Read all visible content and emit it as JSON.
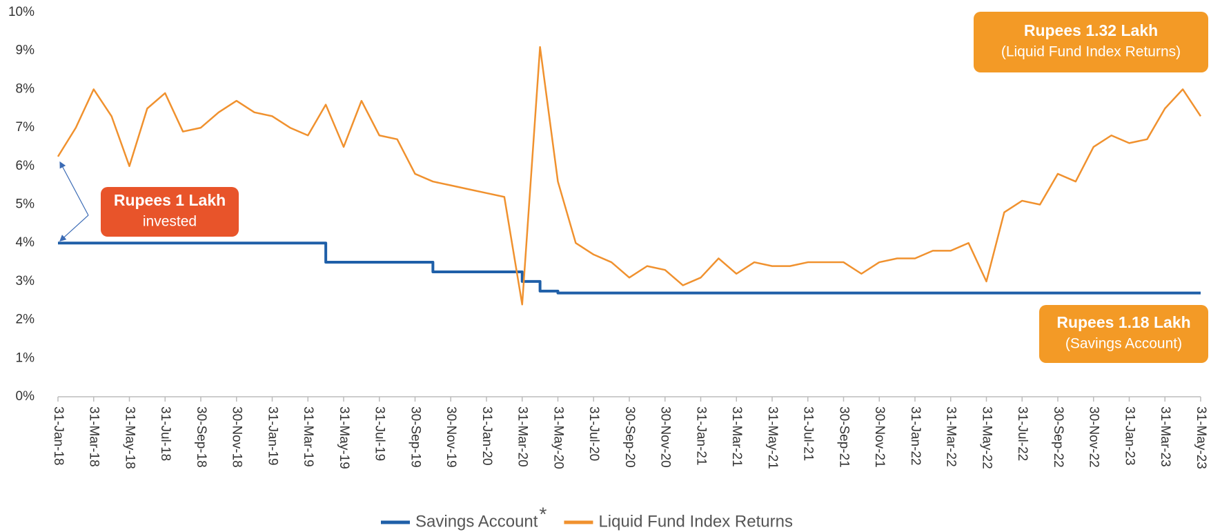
{
  "chart_data": {
    "type": "line",
    "categories": [
      "31-Jan-18",
      null,
      "31-Mar-18",
      null,
      "31-May-18",
      null,
      "31-Jul-18",
      null,
      "30-Sep-18",
      null,
      "30-Nov-18",
      null,
      "31-Jan-19",
      null,
      "31-Mar-19",
      null,
      "31-May-19",
      null,
      "31-Jul-19",
      null,
      "30-Sep-19",
      null,
      "30-Nov-19",
      null,
      "31-Jan-20",
      null,
      "31-Mar-20",
      null,
      "31-May-20",
      null,
      "31-Jul-20",
      null,
      "30-Sep-20",
      null,
      "30-Nov-20",
      null,
      "31-Jan-21",
      null,
      "31-Mar-21",
      null,
      "31-May-21",
      null,
      "31-Jul-21",
      null,
      "30-Sep-21",
      null,
      "30-Nov-21",
      null,
      "31-Jan-22",
      null,
      "31-Mar-22",
      null,
      "31-May-22",
      null,
      "31-Jul-22",
      null,
      "30-Sep-22",
      null,
      "30-Nov-22",
      null,
      "31-Jan-23",
      null,
      "31-Mar-23",
      null,
      "31-May-23"
    ],
    "series": [
      {
        "name": "Savings Account",
        "footnote_mark": "*",
        "color": "#1f5fa8",
        "step": true,
        "values": [
          4,
          4,
          4,
          4,
          4,
          4,
          4,
          4,
          4,
          4,
          4,
          4,
          4,
          4,
          4,
          3.5,
          3.5,
          3.5,
          3.5,
          3.5,
          3.5,
          3.25,
          3.25,
          3.25,
          3.25,
          3.25,
          3.0,
          2.75,
          2.7,
          2.7,
          2.7,
          2.7,
          2.7,
          2.7,
          2.7,
          2.7,
          2.7,
          2.7,
          2.7,
          2.7,
          2.7,
          2.7,
          2.7,
          2.7,
          2.7,
          2.7,
          2.7,
          2.7,
          2.7,
          2.7,
          2.7,
          2.7,
          2.7,
          2.7,
          2.7,
          2.7,
          2.7,
          2.7,
          2.7,
          2.7,
          2.7,
          2.7,
          2.7,
          2.7,
          2.7
        ]
      },
      {
        "name": "Liquid Fund Index Returns",
        "color": "#f0912e",
        "step": false,
        "values": [
          6.25,
          7.0,
          8.0,
          7.3,
          6.0,
          7.5,
          7.9,
          6.9,
          7.0,
          7.4,
          7.7,
          7.4,
          7.3,
          7.0,
          6.8,
          7.6,
          6.5,
          7.7,
          6.8,
          6.7,
          5.8,
          5.6,
          5.5,
          5.4,
          5.3,
          5.2,
          2.4,
          9.1,
          5.6,
          4.0,
          3.7,
          3.5,
          3.1,
          3.4,
          3.3,
          2.9,
          3.1,
          3.6,
          3.2,
          3.5,
          3.4,
          3.4,
          3.5,
          3.5,
          3.5,
          3.2,
          3.5,
          3.6,
          3.6,
          3.8,
          3.8,
          4.0,
          3.0,
          4.8,
          5.1,
          5.0,
          5.8,
          5.6,
          6.5,
          6.8,
          6.6,
          6.7,
          7.5,
          8.0,
          7.3
        ]
      }
    ],
    "ylim": [
      0,
      10
    ],
    "yticks": [
      {
        "value": 0,
        "label": "0%"
      },
      {
        "value": 1,
        "label": "1%"
      },
      {
        "value": 2,
        "label": "2%"
      },
      {
        "value": 3,
        "label": "3%"
      },
      {
        "value": 4,
        "label": "4%"
      },
      {
        "value": 5,
        "label": "5%"
      },
      {
        "value": 6,
        "label": "6%"
      },
      {
        "value": 7,
        "label": "7%"
      },
      {
        "value": 8,
        "label": "8%"
      },
      {
        "value": 9,
        "label": "9%"
      },
      {
        "value": 10,
        "label": "10%"
      }
    ],
    "grid": false,
    "legend": "bottom",
    "annotations": [
      {
        "lines": [
          "Rupees 1 Lakh",
          "invested"
        ],
        "color": "#e8542a"
      },
      {
        "lines": [
          "Rupees 1.32 Lakh",
          "(Liquid Fund Index Returns)"
        ],
        "color": "#f39a26"
      },
      {
        "lines": [
          "Rupees 1.18 Lakh",
          "(Savings Account)"
        ],
        "color": "#f39a26"
      }
    ]
  }
}
